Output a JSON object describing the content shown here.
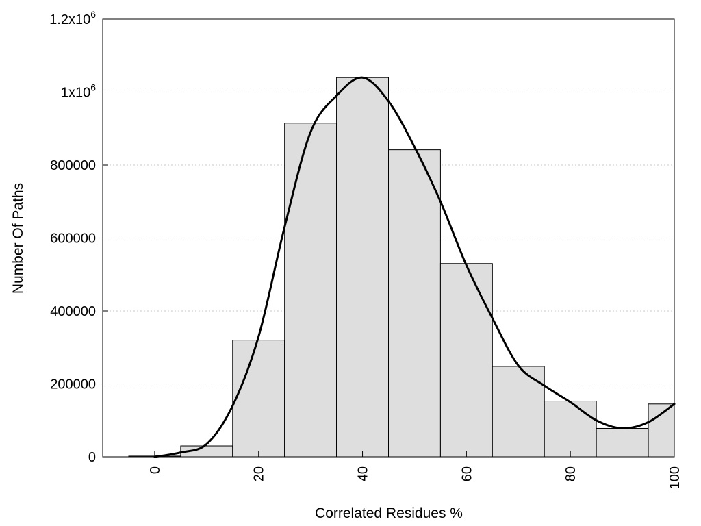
{
  "chart_data": {
    "type": "bar",
    "xlabel": "Correlated Residues %",
    "ylabel": "Number Of Paths",
    "xlim": [
      -10,
      100
    ],
    "ylim": [
      0,
      1200000
    ],
    "bin_width": 10,
    "x_ticks": [
      {
        "value": 0,
        "label": "0"
      },
      {
        "value": 20,
        "label": "20"
      },
      {
        "value": 40,
        "label": "40"
      },
      {
        "value": 60,
        "label": "60"
      },
      {
        "value": 80,
        "label": "80"
      },
      {
        "value": 100,
        "label": "100"
      }
    ],
    "y_ticks": [
      {
        "value": 0,
        "label": "0"
      },
      {
        "value": 200000,
        "label": "200000"
      },
      {
        "value": 400000,
        "label": "400000"
      },
      {
        "value": 600000,
        "label": "600000"
      },
      {
        "value": 800000,
        "label": "800000"
      },
      {
        "value": 1000000,
        "label": "1x10",
        "sup": "6"
      },
      {
        "value": 1200000,
        "label": "1.2x10",
        "sup": "6"
      }
    ],
    "grid": "horizontal dotted",
    "series": [
      {
        "type": "bar",
        "x": [
          0,
          10,
          20,
          30,
          40,
          50,
          60,
          70,
          80,
          90,
          100
        ],
        "values": [
          2000,
          30000,
          320000,
          915000,
          1040000,
          842000,
          530000,
          248000,
          153000,
          78000,
          145000
        ]
      },
      {
        "type": "line",
        "x": [
          0,
          5,
          10,
          15,
          20,
          25,
          30,
          35,
          40,
          45,
          50,
          55,
          60,
          65,
          70,
          75,
          80,
          85,
          90,
          95,
          100
        ],
        "values": [
          0,
          12000,
          35000,
          140000,
          330000,
          630000,
          890000,
          990000,
          1040000,
          975000,
          850000,
          700000,
          525000,
          380000,
          250000,
          195000,
          150000,
          100000,
          78000,
          95000,
          145000
        ]
      }
    ]
  },
  "colors": {
    "bar_fill": "#dedede",
    "bar_stroke": "#000000",
    "curve": "#000000",
    "grid": "#c8c8c8"
  }
}
